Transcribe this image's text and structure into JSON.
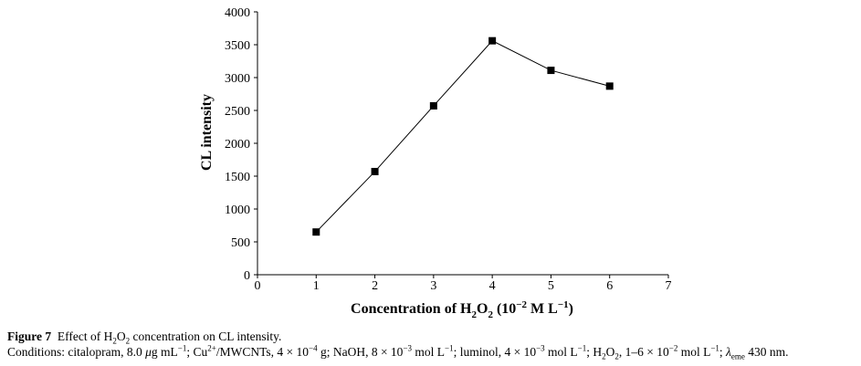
{
  "chart_data": {
    "type": "line",
    "x": [
      1,
      2,
      3,
      4,
      5,
      6
    ],
    "series": [
      {
        "values": [
          650,
          1570,
          2570,
          3560,
          3110,
          2870
        ]
      }
    ],
    "xlim": [
      0,
      7
    ],
    "ylim": [
      0,
      4000
    ],
    "x_ticks": [
      "0",
      "1",
      "2",
      "3",
      "4",
      "5",
      "6",
      "7"
    ],
    "y_ticks": [
      "0",
      "500",
      "1000",
      "1500",
      "2000",
      "2500",
      "3000",
      "3500",
      "4000"
    ],
    "xlabel": "Concentration of H2O2 (10−2 M L−1)",
    "ylabel": "CL intensity",
    "grid": false,
    "marker": "square",
    "line_color": "#000000",
    "marker_color": "#000000"
  },
  "caption": {
    "figure_label": "Figure 7",
    "title": "Effect of H2O2 concentration on CL intensity.",
    "conditions": "Conditions: citalopram, 8.0 μg mL−1; Cu2+/MWCNTs, 4 × 10−4 g; NaOH, 8 × 10−3 mol L−1; luminol, 4 × 10−3 mol L−1; H2O2, 1–6 × 10−2 mol L−1; λeme 430 nm."
  }
}
